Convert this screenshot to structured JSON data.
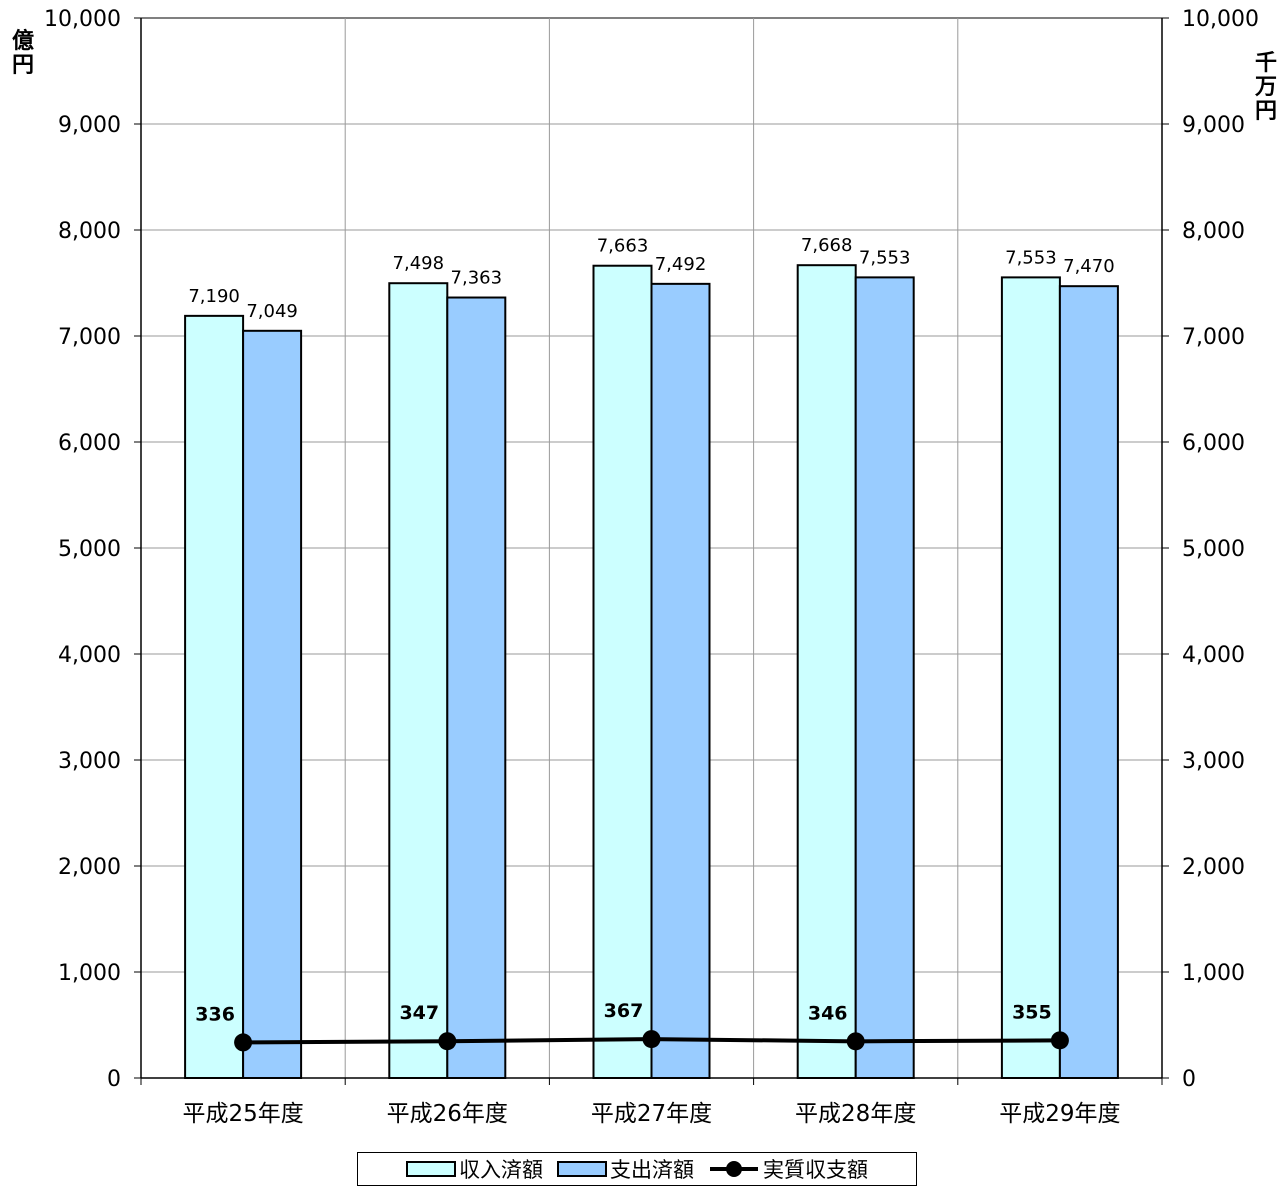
{
  "chart_data": {
    "type": "bar",
    "categories": [
      "平成25年度",
      "平成26年度",
      "平成27年度",
      "平成28年度",
      "平成29年度"
    ],
    "series": [
      {
        "name": "収入済額",
        "kind": "bar",
        "color": "#ccffff",
        "values": [
          7190,
          7498,
          7663,
          7668,
          7553
        ],
        "labels": [
          "7,190",
          "7,498",
          "7,663",
          "7,668",
          "7,553"
        ]
      },
      {
        "name": "支出済額",
        "kind": "bar",
        "color": "#99ccff",
        "values": [
          7049,
          7363,
          7492,
          7553,
          7470
        ],
        "labels": [
          "7,049",
          "7,363",
          "7,492",
          "7,553",
          "7,470"
        ]
      },
      {
        "name": "実質収支額",
        "kind": "line",
        "axis": "right",
        "color": "#000000",
        "values": [
          336,
          347,
          367,
          346,
          355
        ],
        "labels": [
          "336",
          "347",
          "367",
          "346",
          "355"
        ]
      }
    ],
    "y_left": {
      "unit": "億円",
      "ylim": [
        0,
        10000
      ],
      "ticks": [
        "0",
        "1,000",
        "2,000",
        "3,000",
        "4,000",
        "5,000",
        "6,000",
        "7,000",
        "8,000",
        "9,000",
        "10,000"
      ]
    },
    "y_right": {
      "unit": "千万円",
      "ylim": [
        0,
        10000
      ],
      "ticks": [
        "0",
        "1,000",
        "2,000",
        "3,000",
        "4,000",
        "5,000",
        "6,000",
        "7,000",
        "8,000",
        "9,000",
        "10,000"
      ]
    },
    "grid": true,
    "legend": "bottom"
  }
}
